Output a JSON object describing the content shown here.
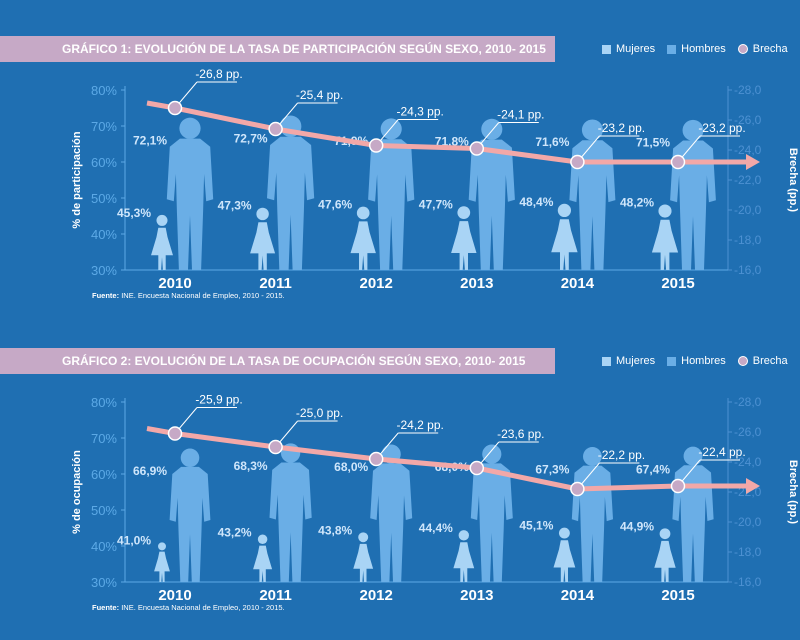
{
  "legend": {
    "women": "Mujeres",
    "men": "Hombres",
    "gap": "Brecha"
  },
  "colors": {
    "background": "#1f6fb2",
    "title_bar": "#c6a9c6",
    "women": "#a9d4f5",
    "men": "#6aaee6",
    "gap_line": "#f2a8a8",
    "gap_marker": "#c6a9c6"
  },
  "chart_data": [
    {
      "type": "line",
      "title": "GRÁFICO 1: EVOLUCIÓN DE LA TASA DE PARTICIPACIÓN SEGÚN SEXO, 2010- 2015",
      "ylabel": "% de participación",
      "y2label": "Brecha (pp.)",
      "categories": [
        "2010",
        "2011",
        "2012",
        "2013",
        "2014",
        "2015"
      ],
      "ylim": [
        30,
        80
      ],
      "y_ticks": [
        "30%",
        "40%",
        "50%",
        "60%",
        "70%",
        "80%"
      ],
      "y2lim": [
        -16,
        -28
      ],
      "y2_ticks": [
        "-16,0",
        "-18,0",
        "-20,0",
        "-22,0",
        "-24,0",
        "-26,0",
        "-28,0"
      ],
      "series": [
        {
          "name": "Mujeres",
          "values": [
            45.3,
            47.3,
            47.6,
            47.7,
            48.4,
            48.2
          ],
          "labels": [
            "45,3%",
            "47,3%",
            "47,6%",
            "47,7%",
            "48,4%",
            "48,2%"
          ]
        },
        {
          "name": "Hombres",
          "values": [
            72.1,
            72.7,
            71.9,
            71.8,
            71.6,
            71.5
          ],
          "labels": [
            "72,1%",
            "72,7%",
            "71,9%",
            "71,8%",
            "71,6%",
            "71,5%"
          ]
        },
        {
          "name": "Brecha",
          "values": [
            -26.8,
            -25.4,
            -24.3,
            -24.1,
            -23.2,
            -23.2
          ],
          "labels": [
            "-26,8 pp.",
            "-25,4 pp.",
            "-24,3 pp.",
            "-24,1 pp.",
            "-23,2 pp.",
            "-23,2 pp."
          ]
        }
      ],
      "source_label": "Fuente:",
      "source_text": "INE. Encuesta Nacional de Empleo, 2010 - 2015."
    },
    {
      "type": "line",
      "title": "GRÁFICO 2: EVOLUCIÓN DE LA TASA DE OCUPACIÓN SEGÚN SEXO, 2010- 2015",
      "ylabel": "% de ocupación",
      "y2label": "Brecha (pp.)",
      "categories": [
        "2010",
        "2011",
        "2012",
        "2013",
        "2014",
        "2015"
      ],
      "ylim": [
        30,
        80
      ],
      "y_ticks": [
        "30%",
        "40%",
        "50%",
        "60%",
        "70%",
        "80%"
      ],
      "y2lim": [
        -16,
        -28
      ],
      "y2_ticks": [
        "-16,0",
        "-18,0",
        "-20,0",
        "-22,0",
        "-24,0",
        "-26,0",
        "-28,0"
      ],
      "series": [
        {
          "name": "Mujeres",
          "values": [
            41.0,
            43.2,
            43.8,
            44.4,
            45.1,
            44.9
          ],
          "labels": [
            "41,0%",
            "43,2%",
            "43,8%",
            "44,4%",
            "45,1%",
            "44,9%"
          ]
        },
        {
          "name": "Hombres",
          "values": [
            66.9,
            68.3,
            68.0,
            68.0,
            67.3,
            67.4
          ],
          "labels": [
            "66,9%",
            "68,3%",
            "68,0%",
            "68,0%",
            "67,3%",
            "67,4%"
          ]
        },
        {
          "name": "Brecha",
          "values": [
            -25.9,
            -25.0,
            -24.2,
            -23.6,
            -22.2,
            -22.4
          ],
          "labels": [
            "-25,9 pp.",
            "-25,0 pp.",
            "-24,2 pp.",
            "-23,6 pp.",
            "-22,2 pp.",
            "-22,4 pp."
          ]
        }
      ],
      "source_label": "Fuente:",
      "source_text": "INE. Encuesta Nacional de Empleo, 2010 - 2015."
    }
  ]
}
